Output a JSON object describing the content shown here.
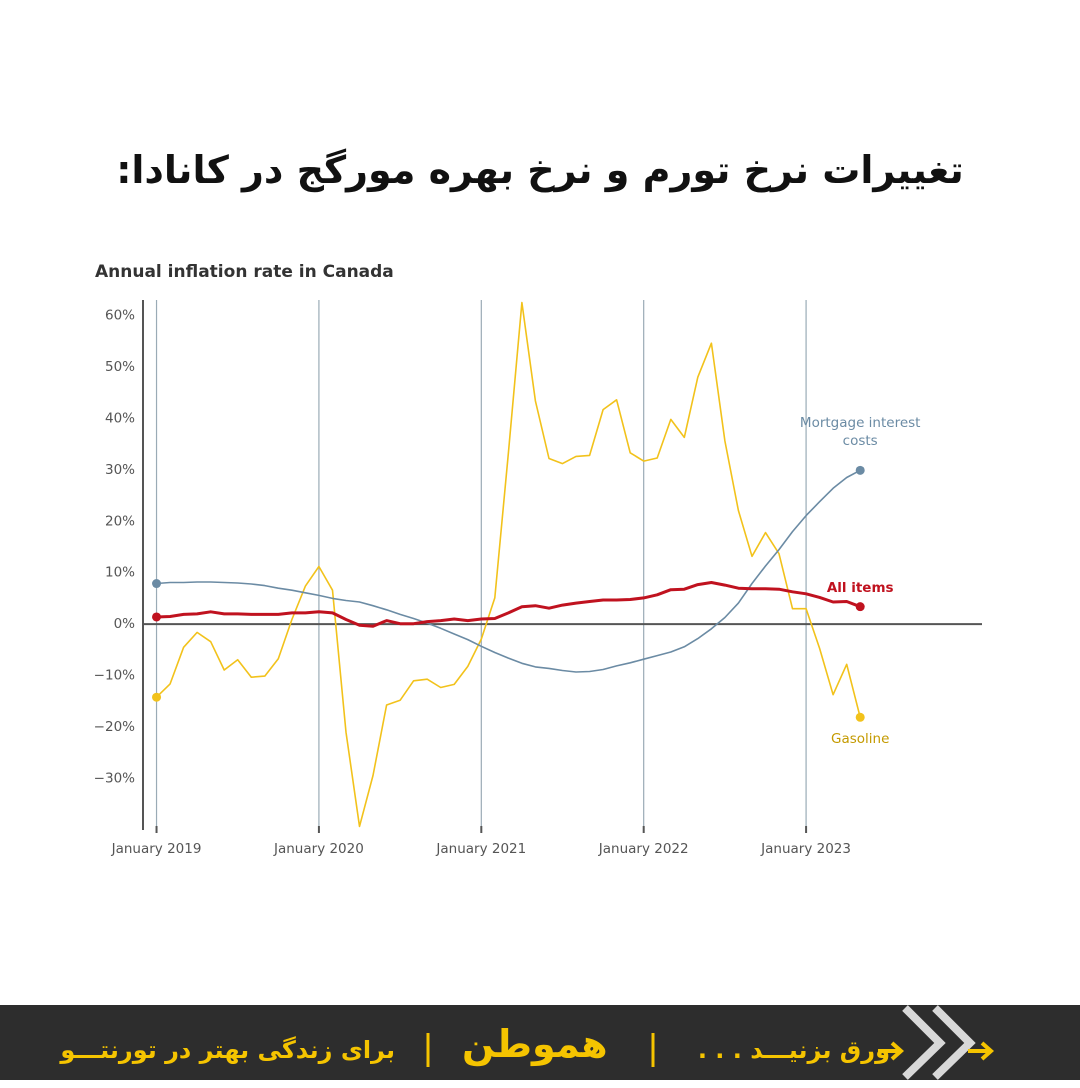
{
  "header": {
    "title": "تغییرات نرخ تورم و نرخ بهره مورگج در کانادا:"
  },
  "chart_data": {
    "type": "line",
    "title": "Annual inflation rate in Canada",
    "x": [
      "2019-01",
      "2019-02",
      "2019-03",
      "2019-04",
      "2019-05",
      "2019-06",
      "2019-07",
      "2019-08",
      "2019-09",
      "2019-10",
      "2019-11",
      "2019-12",
      "2020-01",
      "2020-02",
      "2020-03",
      "2020-04",
      "2020-05",
      "2020-06",
      "2020-07",
      "2020-08",
      "2020-09",
      "2020-10",
      "2020-11",
      "2020-12",
      "2021-01",
      "2021-02",
      "2021-03",
      "2021-04",
      "2021-05",
      "2021-06",
      "2021-07",
      "2021-08",
      "2021-09",
      "2021-10",
      "2021-11",
      "2021-12",
      "2022-01",
      "2022-02",
      "2022-03",
      "2022-04",
      "2022-05",
      "2022-06",
      "2022-07",
      "2022-08",
      "2022-09",
      "2022-10",
      "2022-11",
      "2022-12",
      "2023-01",
      "2023-02",
      "2023-03",
      "2023-04",
      "2023-05"
    ],
    "xlim": [
      "2018-12",
      "2024-02"
    ],
    "xticks": [
      {
        "value": "2019-01",
        "label": "January 2019"
      },
      {
        "value": "2020-01",
        "label": "January 2020"
      },
      {
        "value": "2021-01",
        "label": "January 2021"
      },
      {
        "value": "2022-01",
        "label": "January 2022"
      },
      {
        "value": "2023-01",
        "label": "January 2023"
      }
    ],
    "ylim": [
      -40,
      63
    ],
    "yticks": [
      {
        "value": -30,
        "label": "−30%"
      },
      {
        "value": -20,
        "label": "−20%"
      },
      {
        "value": -10,
        "label": "−10%"
      },
      {
        "value": 0,
        "label": "0%"
      },
      {
        "value": 10,
        "label": "10%"
      },
      {
        "value": 20,
        "label": "20%"
      },
      {
        "value": 30,
        "label": "30%"
      },
      {
        "value": 40,
        "label": "40%"
      },
      {
        "value": 50,
        "label": "50%"
      },
      {
        "value": 60,
        "label": "60%"
      }
    ],
    "grid": "x",
    "series": [
      {
        "name": "Gasoline",
        "color": "#f2c21b",
        "label_color": "#c49a00",
        "values": [
          -14.2,
          -11.6,
          -4.5,
          -1.6,
          -3.4,
          -8.9,
          -6.9,
          -10.3,
          -10.1,
          -6.7,
          0.9,
          7.4,
          11.2,
          6.6,
          -21.0,
          -39.3,
          -29.4,
          -15.7,
          -14.8,
          -11.0,
          -10.7,
          -12.3,
          -11.7,
          -8.2,
          -2.9,
          5.1,
          33.3,
          62.5,
          43.4,
          32.2,
          31.2,
          32.6,
          32.8,
          41.7,
          43.6,
          33.3,
          31.7,
          32.3,
          39.8,
          36.3,
          48.0,
          54.6,
          35.6,
          22.1,
          13.2,
          17.8,
          13.7,
          3.0,
          3.0,
          -4.7,
          -13.7,
          -7.8,
          -18.1
        ]
      },
      {
        "name": "Mortgage interest costs",
        "color": "#6b8ba4",
        "label_color": "#6b8ba4",
        "values": [
          7.9,
          8.1,
          8.1,
          8.2,
          8.2,
          8.1,
          8.0,
          7.8,
          7.5,
          7.0,
          6.6,
          6.1,
          5.6,
          5.0,
          4.6,
          4.3,
          3.6,
          2.8,
          1.9,
          1.1,
          0.2,
          -0.8,
          -1.9,
          -3.0,
          -4.3,
          -5.5,
          -6.6,
          -7.6,
          -8.3,
          -8.6,
          -9.0,
          -9.3,
          -9.2,
          -8.8,
          -8.1,
          -7.5,
          -6.8,
          -6.1,
          -5.4,
          -4.4,
          -2.8,
          -0.9,
          1.3,
          4.1,
          7.9,
          11.3,
          14.5,
          18.0,
          21.1,
          23.8,
          26.4,
          28.5,
          29.9
        ]
      },
      {
        "name": "All items",
        "color": "#c0121f",
        "label_color": "#c0121f",
        "values": [
          1.4,
          1.5,
          1.9,
          2.0,
          2.4,
          2.0,
          2.0,
          1.9,
          1.9,
          1.9,
          2.2,
          2.2,
          2.4,
          2.2,
          0.9,
          -0.2,
          -0.4,
          0.7,
          0.1,
          0.1,
          0.5,
          0.7,
          1.0,
          0.7,
          1.0,
          1.1,
          2.2,
          3.4,
          3.6,
          3.1,
          3.7,
          4.1,
          4.4,
          4.7,
          4.7,
          4.8,
          5.1,
          5.7,
          6.7,
          6.8,
          7.7,
          8.1,
          7.6,
          7.0,
          6.9,
          6.9,
          6.8,
          6.3,
          5.9,
          5.2,
          4.3,
          4.4,
          3.4
        ]
      }
    ]
  },
  "footer": {
    "tagline": "برای زندگی بهتر در تورنتـــو",
    "brand": "هموطن",
    "swipe": "ورق بزنیـــد . . ."
  }
}
